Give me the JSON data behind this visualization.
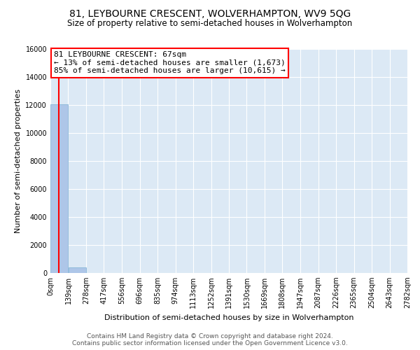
{
  "title": "81, LEYBOURNE CRESCENT, WOLVERHAMPTON, WV9 5QG",
  "subtitle": "Size of property relative to semi-detached houses in Wolverhampton",
  "xlabel": "Distribution of semi-detached houses by size in Wolverhampton",
  "ylabel": "Number of semi-detached properties",
  "property_size": 67,
  "annotation_text_line1": "81 LEYBOURNE CRESCENT: 67sqm",
  "annotation_text_line2": "← 13% of semi-detached houses are smaller (1,673)",
  "annotation_text_line3": "85% of semi-detached houses are larger (10,615) →",
  "bar_color": "#aec6e8",
  "bar_edge_color": "#7aafd4",
  "vline_color": "red",
  "annotation_box_color": "white",
  "annotation_box_edge": "red",
  "background_color": "#dce9f5",
  "grid_color": "white",
  "bin_edges": [
    0,
    139,
    278,
    417,
    556,
    696,
    835,
    974,
    1113,
    1252,
    1391,
    1530,
    1669,
    1808,
    1947,
    2087,
    2226,
    2365,
    2504,
    2643,
    2782
  ],
  "bin_labels": [
    "0sqm",
    "139sqm",
    "278sqm",
    "417sqm",
    "556sqm",
    "696sqm",
    "835sqm",
    "974sqm",
    "1113sqm",
    "1252sqm",
    "1391sqm",
    "1530sqm",
    "1669sqm",
    "1808sqm",
    "1947sqm",
    "2087sqm",
    "2226sqm",
    "2365sqm",
    "2504sqm",
    "2643sqm",
    "2782sqm"
  ],
  "bar_heights": [
    12050,
    380,
    0,
    0,
    0,
    0,
    0,
    0,
    0,
    0,
    0,
    0,
    0,
    0,
    0,
    0,
    0,
    0,
    0,
    0
  ],
  "ylim": [
    0,
    16000
  ],
  "yticks": [
    0,
    2000,
    4000,
    6000,
    8000,
    10000,
    12000,
    14000,
    16000
  ],
  "footer_line1": "Contains HM Land Registry data © Crown copyright and database right 2024.",
  "footer_line2": "Contains public sector information licensed under the Open Government Licence v3.0.",
  "title_fontsize": 10,
  "subtitle_fontsize": 8.5,
  "axis_label_fontsize": 8,
  "tick_fontsize": 7,
  "annotation_fontsize": 8,
  "footer_fontsize": 6.5
}
